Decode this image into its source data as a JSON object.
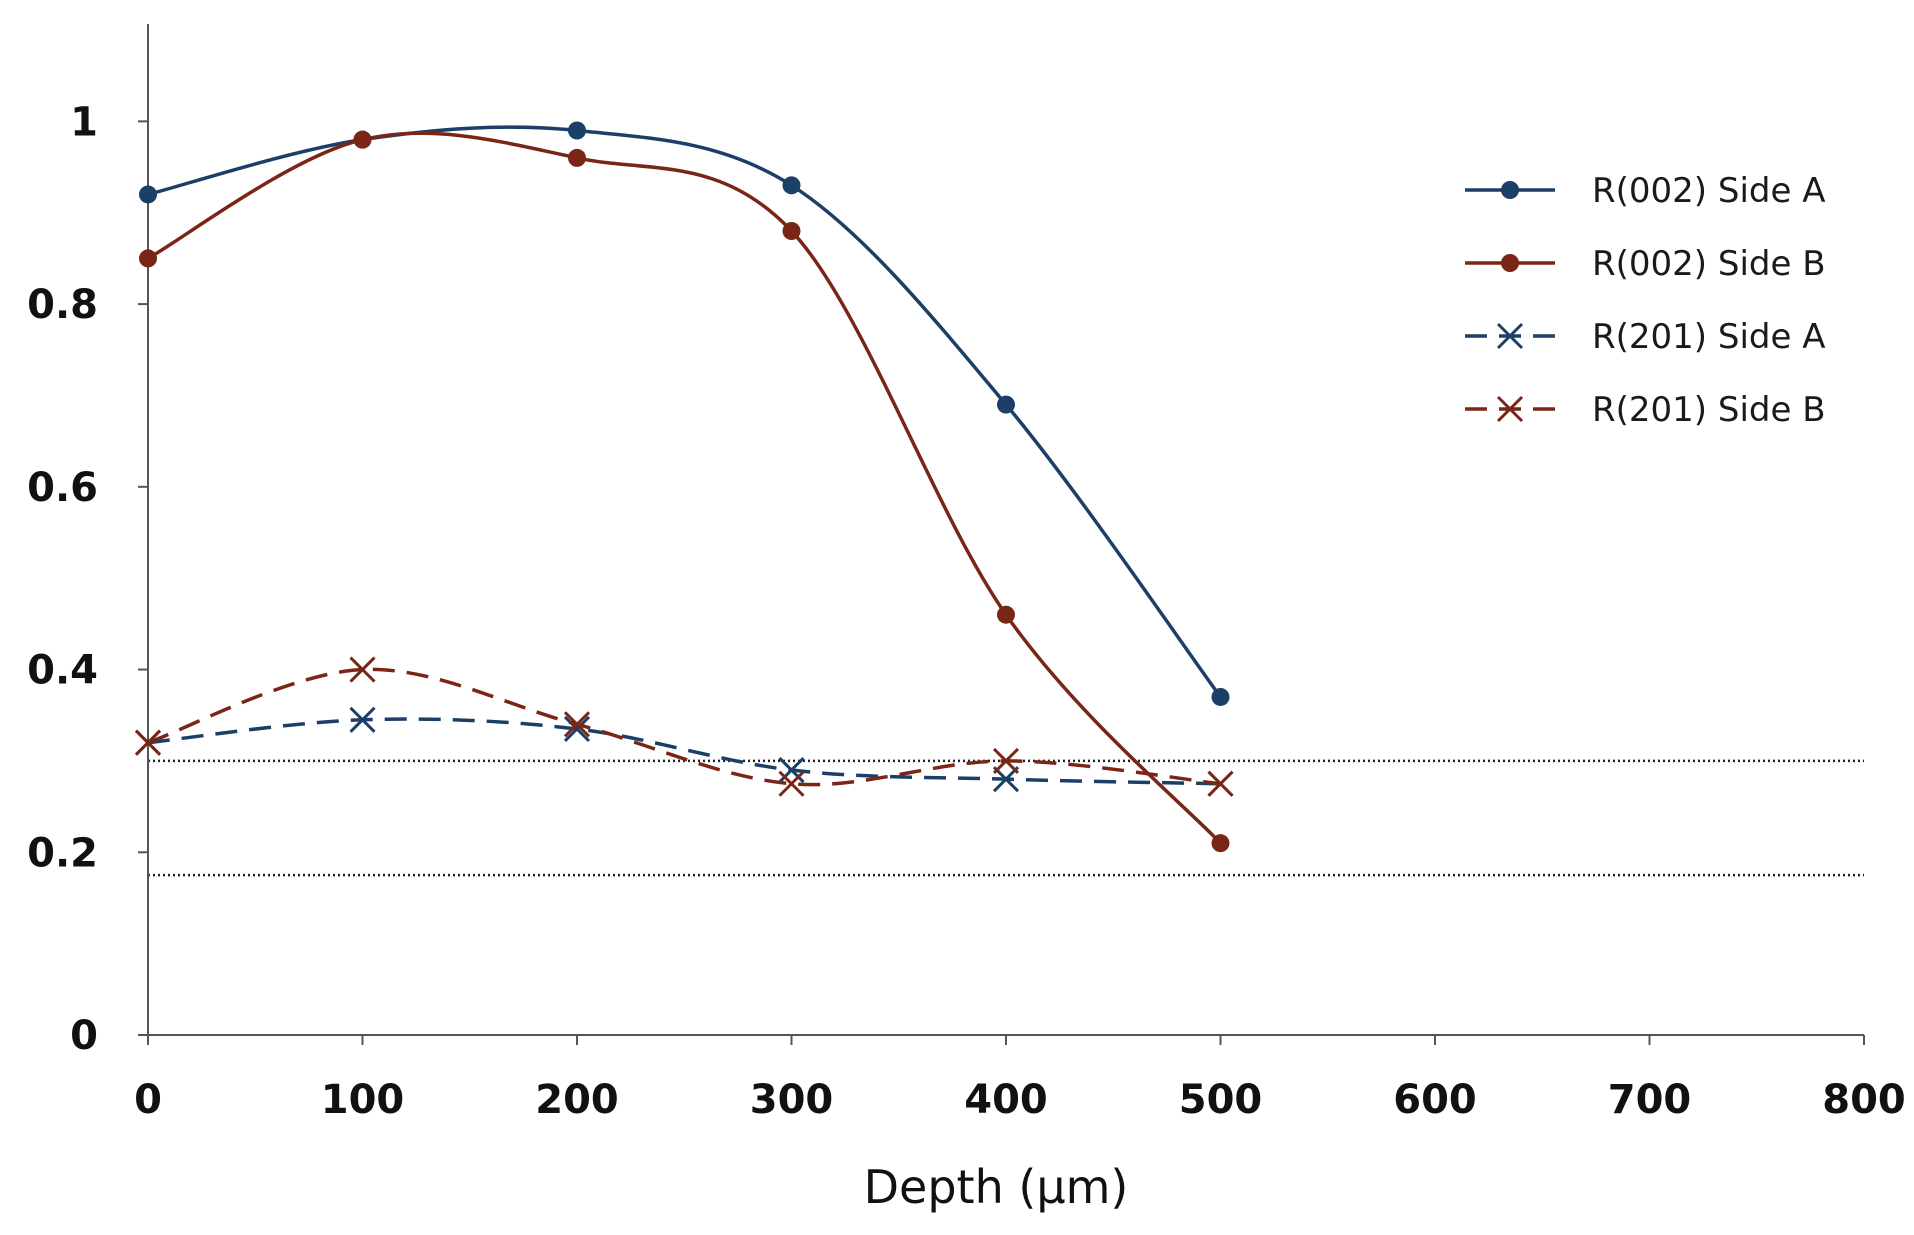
{
  "chart_data": {
    "type": "line",
    "title": "",
    "xlabel": "Depth (μm)",
    "ylabel": "",
    "xlim": [
      0,
      800
    ],
    "ylim": [
      0,
      1.1
    ],
    "xticks": [
      0,
      100,
      200,
      300,
      400,
      500,
      600,
      700,
      800
    ],
    "xtick_labels": [
      "0",
      "100",
      "200",
      "300",
      "400",
      "500",
      "600",
      "700",
      "800"
    ],
    "yticks": [
      0,
      0.2,
      0.4,
      0.6,
      0.8,
      1
    ],
    "ytick_labels": [
      "0",
      "0.2",
      "0.4",
      "0.6",
      "0.8",
      "1"
    ],
    "grid": false,
    "legend_position": "right",
    "x": [
      0,
      100,
      200,
      300,
      400,
      500
    ],
    "series": [
      {
        "name": "R(002) Side A",
        "values": [
          0.92,
          0.98,
          0.99,
          0.93,
          0.69,
          0.37
        ],
        "color": "#1b3f66",
        "marker": "circle",
        "dashed": false
      },
      {
        "name": "R(002) Side B",
        "values": [
          0.85,
          0.98,
          0.96,
          0.88,
          0.46,
          0.21
        ],
        "color": "#7a2616",
        "marker": "circle",
        "dashed": false
      },
      {
        "name": "R(201) Side A",
        "values": [
          0.32,
          0.345,
          0.335,
          0.29,
          0.28,
          0.275
        ],
        "color": "#1b3f66",
        "marker": "x",
        "dashed": true
      },
      {
        "name": "R(201) Side B",
        "values": [
          0.32,
          0.4,
          0.34,
          0.275,
          0.3,
          0.275
        ],
        "color": "#7a2616",
        "marker": "x",
        "dashed": true
      }
    ],
    "reference_lines": [
      {
        "y": 0.3,
        "style": "dotted"
      },
      {
        "y": 0.175,
        "style": "dotted"
      }
    ]
  }
}
